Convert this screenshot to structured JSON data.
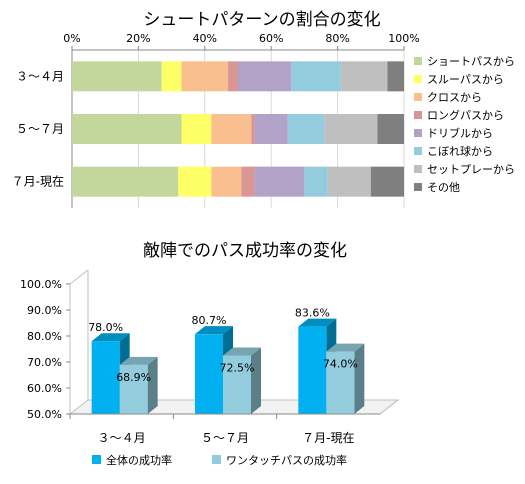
{
  "chart_data": [
    {
      "type": "bar",
      "orientation": "horizontal",
      "stacked": "percent",
      "title": "シュートパターンの割合の変化",
      "categories": [
        "３～４月",
        "５～７月",
        "７月-現在"
      ],
      "x_ticks": [
        "0%",
        "20%",
        "40%",
        "60%",
        "80%",
        "100%"
      ],
      "xlim": [
        0,
        100
      ],
      "grid": true,
      "legend_position": "right",
      "series": [
        {
          "name": "ショートパスから",
          "color": "#c3d69b",
          "values": [
            27,
            33,
            32
          ]
        },
        {
          "name": "スルーパスから",
          "color": "#ffff66",
          "values": [
            6,
            9,
            10
          ]
        },
        {
          "name": "クロスから",
          "color": "#fabf8f",
          "values": [
            14,
            12,
            9
          ]
        },
        {
          "name": "ロングパスから",
          "color": "#d99694",
          "values": [
            3,
            1,
            4
          ]
        },
        {
          "name": "ドリブルから",
          "color": "#b3a2c7",
          "values": [
            16,
            10,
            15
          ]
        },
        {
          "name": "こぼれ球から",
          "color": "#93cddd",
          "values": [
            15,
            11,
            7
          ]
        },
        {
          "name": "セットプレーから",
          "color": "#bfbfbf",
          "values": [
            14,
            16,
            13
          ]
        },
        {
          "name": "その他",
          "color": "#7f7f7f",
          "values": [
            5,
            8,
            10
          ]
        }
      ]
    },
    {
      "type": "bar",
      "style": "3d-clustered",
      "title": "敵陣でのパス成功率の変化",
      "categories": [
        "３～４月",
        "５～７月",
        "７月-現在"
      ],
      "y_ticks": [
        "50.0%",
        "60.0%",
        "70.0%",
        "80.0%",
        "90.0%",
        "100.0%"
      ],
      "ylim": [
        50,
        100
      ],
      "legend_position": "bottom",
      "series": [
        {
          "name": "全体の成功率",
          "color": "#00b0f0",
          "values": [
            78.0,
            80.7,
            83.6
          ],
          "labels": [
            "78.0%",
            "80.7%",
            "83.6%"
          ]
        },
        {
          "name": "ワンタッチパスの成功率",
          "color": "#93cddd",
          "values": [
            68.9,
            72.5,
            74.0
          ],
          "labels": [
            "68.9%",
            "72.5%",
            "74.0%"
          ]
        }
      ]
    }
  ]
}
